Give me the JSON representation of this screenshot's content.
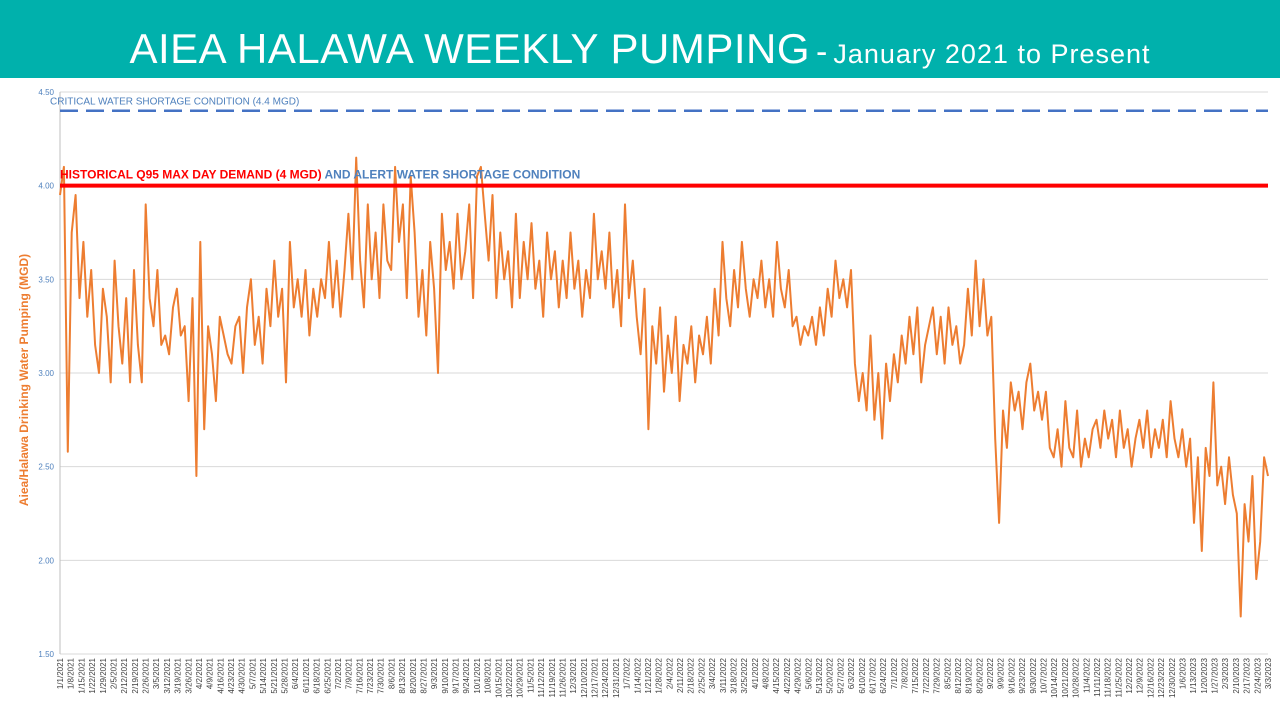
{
  "header": {
    "title_main": "AIEA HALAWA WEEKLY PUMPING",
    "title_separator": "-",
    "title_sub": "January 2021 to Present"
  },
  "colors": {
    "header_bg": "#00b1ac",
    "series": "#ed7d31",
    "critical_line": "#4472c4",
    "alert_line": "#ff0000",
    "alert_label_blue": "#4f81bd",
    "axis_text": "#4f81bd"
  },
  "chart_data": {
    "type": "line",
    "ylabel": "Aiea/Halawa Drinking Water Pumping (MGD)",
    "ylim": [
      1.5,
      4.5
    ],
    "yticks": [
      "1.50",
      "2.00",
      "2.50",
      "3.00",
      "3.50",
      "4.00",
      "4.50"
    ],
    "grid": true,
    "x_tick_labels": [
      "1/1/2021",
      "1/8/2021",
      "1/15/2021",
      "1/22/2021",
      "1/29/2021",
      "2/5/2021",
      "2/12/2021",
      "2/19/2021",
      "2/26/2021",
      "3/5/2021",
      "3/12/2021",
      "3/19/2021",
      "3/26/2021",
      "4/2/2021",
      "4/9/2021",
      "4/16/2021",
      "4/23/2021",
      "4/30/2021",
      "5/7/2021",
      "5/14/2021",
      "5/21/2021",
      "5/28/2021",
      "6/4/2021",
      "6/11/2021",
      "6/18/2021",
      "6/25/2021",
      "7/2/2021",
      "7/9/2021",
      "7/16/2021",
      "7/23/2021",
      "7/30/2021",
      "8/6/2021",
      "8/13/2021",
      "8/20/2021",
      "8/27/2021",
      "9/3/2021",
      "9/10/2021",
      "9/17/2021",
      "9/24/2021",
      "10/1/2021",
      "10/8/2021",
      "10/15/2021",
      "10/22/2021",
      "10/29/2021",
      "11/5/2021",
      "11/12/2021",
      "11/19/2021",
      "11/26/2021",
      "12/3/2021",
      "12/10/2021",
      "12/17/2021",
      "12/24/2021",
      "12/31/2021",
      "1/7/2022",
      "1/14/2022",
      "1/21/2022",
      "1/28/2022",
      "2/4/2022",
      "2/11/2022",
      "2/18/2022",
      "2/25/2022",
      "3/4/2022",
      "3/11/2022",
      "3/18/2022",
      "3/25/2022",
      "4/1/2022",
      "4/8/2022",
      "4/15/2022",
      "4/22/2022",
      "4/29/2022",
      "5/6/2022",
      "5/13/2022",
      "5/20/2022",
      "5/27/2022",
      "6/3/2022",
      "6/10/2022",
      "6/17/2022",
      "6/24/2022",
      "7/1/2022",
      "7/8/2022",
      "7/15/2022",
      "7/22/2022",
      "7/29/2022",
      "8/5/2022",
      "8/12/2022",
      "8/19/2022",
      "8/26/2022",
      "9/2/2022",
      "9/9/2022",
      "9/16/2022",
      "9/23/2022",
      "9/30/2022",
      "10/7/2022",
      "10/14/2022",
      "10/21/2022",
      "10/28/2022",
      "11/4/2022",
      "11/11/2022",
      "11/18/2022",
      "11/25/2022",
      "12/2/2022",
      "12/9/2022",
      "12/16/2022",
      "12/23/2022",
      "12/30/2022",
      "1/6/2023",
      "1/13/2023",
      "1/20/2023",
      "1/27/2023",
      "2/3/2023",
      "2/10/2023",
      "2/17/2023",
      "2/24/2023",
      "3/3/2023"
    ],
    "reference_lines": [
      {
        "value": 4.4,
        "label": "CRITICAL WATER SHORTAGE CONDITION (4.4 MGD)",
        "style": "dashed"
      },
      {
        "value": 4.0,
        "label": "HISTORICAL Q95 MAX DAY DEMAND (4 MGD)",
        "label_extra": " AND ALERT WATER SHORTAGE CONDITION",
        "style": "solid"
      }
    ],
    "series": [
      {
        "values": [
          3.95,
          4.1,
          2.58,
          3.75,
          3.95,
          3.4,
          3.7,
          3.3,
          3.55,
          3.15,
          3.0,
          3.45,
          3.3,
          2.95,
          3.6,
          3.25,
          3.05,
          3.4,
          2.95,
          3.55,
          3.15,
          2.95,
          3.9,
          3.4,
          3.25,
          3.55,
          3.15,
          3.2,
          3.1,
          3.35,
          3.45,
          3.2,
          3.25,
          2.85,
          3.4,
          2.45,
          3.7,
          2.7,
          3.25,
          3.1,
          2.85,
          3.3,
          3.2,
          3.1,
          3.05,
          3.25,
          3.3,
          3.0,
          3.35,
          3.5,
          3.15,
          3.3,
          3.05,
          3.45,
          3.25,
          3.6,
          3.3,
          3.45,
          2.95,
          3.7,
          3.35,
          3.5,
          3.3,
          3.55,
          3.2,
          3.45,
          3.3,
          3.5,
          3.4,
          3.7,
          3.35,
          3.6,
          3.3,
          3.55,
          3.85,
          3.5,
          4.15,
          3.6,
          3.35,
          3.9,
          3.5,
          3.75,
          3.4,
          3.9,
          3.6,
          3.55,
          4.1,
          3.7,
          3.9,
          3.4,
          4.05,
          3.75,
          3.3,
          3.55,
          3.2,
          3.7,
          3.45,
          3.0,
          3.85,
          3.55,
          3.7,
          3.45,
          3.85,
          3.5,
          3.65,
          3.9,
          3.4,
          4.05,
          4.1,
          3.85,
          3.6,
          3.95,
          3.4,
          3.75,
          3.5,
          3.65,
          3.35,
          3.85,
          3.4,
          3.7,
          3.5,
          3.8,
          3.45,
          3.6,
          3.3,
          3.75,
          3.5,
          3.65,
          3.35,
          3.6,
          3.4,
          3.75,
          3.45,
          3.6,
          3.3,
          3.55,
          3.4,
          3.85,
          3.5,
          3.65,
          3.45,
          3.75,
          3.35,
          3.55,
          3.25,
          3.9,
          3.4,
          3.6,
          3.3,
          3.1,
          3.45,
          2.7,
          3.25,
          3.05,
          3.35,
          2.9,
          3.2,
          3.0,
          3.3,
          2.85,
          3.15,
          3.05,
          3.25,
          2.95,
          3.2,
          3.1,
          3.3,
          3.05,
          3.45,
          3.2,
          3.7,
          3.4,
          3.25,
          3.55,
          3.35,
          3.7,
          3.45,
          3.3,
          3.5,
          3.4,
          3.6,
          3.35,
          3.5,
          3.3,
          3.7,
          3.45,
          3.35,
          3.55,
          3.25,
          3.3,
          3.15,
          3.25,
          3.2,
          3.3,
          3.15,
          3.35,
          3.2,
          3.45,
          3.3,
          3.6,
          3.4,
          3.5,
          3.35,
          3.55,
          3.05,
          2.85,
          3.0,
          2.8,
          3.2,
          2.75,
          3.0,
          2.65,
          3.05,
          2.85,
          3.1,
          2.95,
          3.2,
          3.05,
          3.3,
          3.1,
          3.35,
          2.95,
          3.15,
          3.25,
          3.35,
          3.1,
          3.3,
          3.05,
          3.35,
          3.15,
          3.25,
          3.05,
          3.15,
          3.45,
          3.2,
          3.6,
          3.25,
          3.5,
          3.2,
          3.3,
          2.65,
          2.2,
          2.8,
          2.6,
          2.95,
          2.8,
          2.9,
          2.7,
          2.95,
          3.05,
          2.8,
          2.9,
          2.75,
          2.9,
          2.6,
          2.55,
          2.7,
          2.5,
          2.85,
          2.6,
          2.55,
          2.8,
          2.5,
          2.65,
          2.55,
          2.7,
          2.75,
          2.6,
          2.8,
          2.65,
          2.75,
          2.55,
          2.8,
          2.6,
          2.7,
          2.5,
          2.65,
          2.75,
          2.6,
          2.8,
          2.55,
          2.7,
          2.6,
          2.75,
          2.55,
          2.85,
          2.65,
          2.55,
          2.7,
          2.5,
          2.65,
          2.2,
          2.55,
          2.05,
          2.6,
          2.45,
          2.95,
          2.4,
          2.5,
          2.3,
          2.55,
          2.35,
          2.25,
          1.7,
          2.3,
          2.1,
          2.45,
          1.9,
          2.1,
          2.55,
          2.45
        ]
      }
    ]
  }
}
